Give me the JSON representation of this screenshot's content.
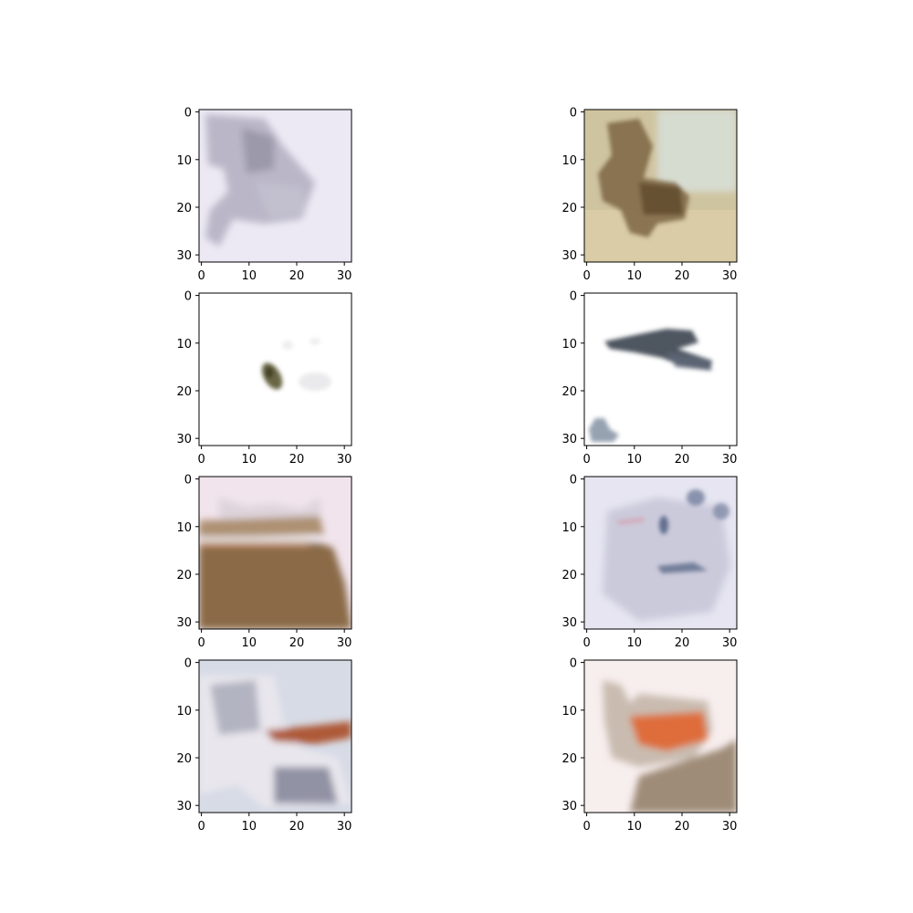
{
  "figure": {
    "axes": [
      {
        "image": "blurry lavender-grey animal silhouette on pale lavender background",
        "colors": [
          "#ece9f4",
          "#a9a6b8",
          "#8e8ba0",
          "#c4c1d0"
        ],
        "xticks": [
          "0",
          "10",
          "20",
          "30"
        ],
        "yticks": [
          "0",
          "10",
          "20",
          "30"
        ]
      },
      {
        "image": "brown animal (horse/dog) on sandy beige background",
        "colors": [
          "#cfc4a0",
          "#7d6442",
          "#5e4a2d",
          "#d9cda6"
        ],
        "xticks": [
          "0",
          "10",
          "20",
          "30"
        ],
        "yticks": [
          "0",
          "10",
          "20",
          "30"
        ]
      },
      {
        "image": "small dark olive bird with pale smudges on white background",
        "colors": [
          "#ffffff",
          "#5a5532",
          "#e8e8ea",
          "#3c3a22"
        ],
        "xticks": [
          "0",
          "10",
          "20",
          "30"
        ],
        "yticks": [
          "0",
          "10",
          "20",
          "30"
        ]
      },
      {
        "image": "dark slate-blue flying shape and small grey object on white background",
        "colors": [
          "#ffffff",
          "#3b4350",
          "#8c98a8",
          "#5e6878"
        ],
        "xticks": [
          "0",
          "10",
          "20",
          "30"
        ],
        "yticks": [
          "0",
          "10",
          "20",
          "30"
        ]
      },
      {
        "image": "pinkish top with brown lower region",
        "colors": [
          "#f1e4ec",
          "#8a6a47",
          "#a2825e",
          "#c89068"
        ],
        "xticks": [
          "0",
          "10",
          "20",
          "30"
        ],
        "yticks": [
          "0",
          "10",
          "20",
          "30"
        ]
      },
      {
        "image": "pale lavender face-like shape with dark blue marks",
        "colors": [
          "#e6e5f1",
          "#5c6a8a",
          "#b9b8cd",
          "#7e8aa5"
        ],
        "xticks": [
          "0",
          "10",
          "20",
          "30"
        ],
        "yticks": [
          "0",
          "10",
          "20",
          "30"
        ]
      },
      {
        "image": "grey vehicle-like shape with rust-orange stripe on light blue background",
        "colors": [
          "#d7dbe6",
          "#a84a24",
          "#8f93a5",
          "#ece9ef"
        ],
        "xticks": [
          "0",
          "10",
          "20",
          "30"
        ],
        "yticks": [
          "0",
          "10",
          "20",
          "30"
        ]
      },
      {
        "image": "orange and grey blurry object on pinkish-white background",
        "colors": [
          "#f7eeee",
          "#e0652e",
          "#a3917c",
          "#8a735a"
        ],
        "xticks": [
          "0",
          "10",
          "20",
          "30"
        ],
        "yticks": [
          "0",
          "10",
          "20",
          "30"
        ]
      }
    ]
  }
}
